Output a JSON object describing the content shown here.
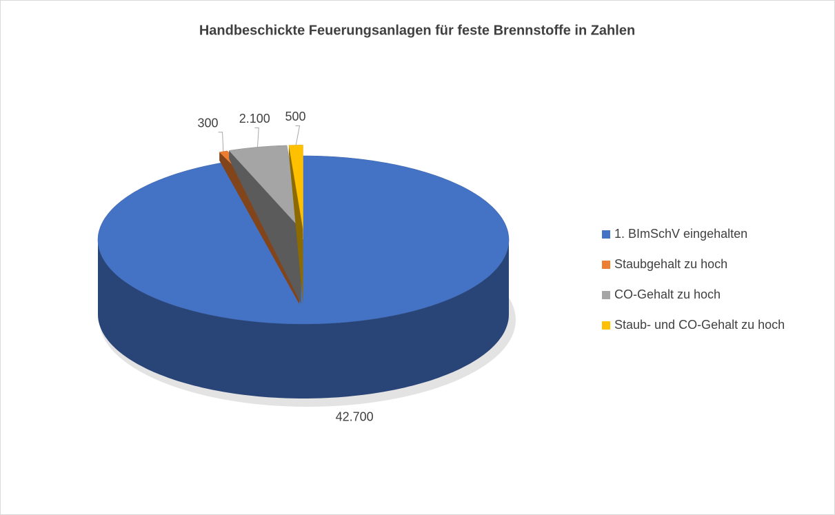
{
  "chart_data": {
    "type": "pie",
    "title": "Handbeschickte Feuerungsanlagen für feste Brennstoffe in Zahlen",
    "categories": [
      "1. BImSchV eingehalten",
      "Staubgehalt zu hoch",
      "CO-Gehalt zu hoch",
      "Staub- und CO-Gehalt zu hoch"
    ],
    "values": [
      42700,
      300,
      2100,
      500
    ],
    "value_labels": [
      "42.700",
      "300",
      "2.100",
      "500"
    ],
    "colors": [
      "#4472c4",
      "#ed7d31",
      "#a5a5a5",
      "#ffc000"
    ],
    "legend": "right"
  }
}
